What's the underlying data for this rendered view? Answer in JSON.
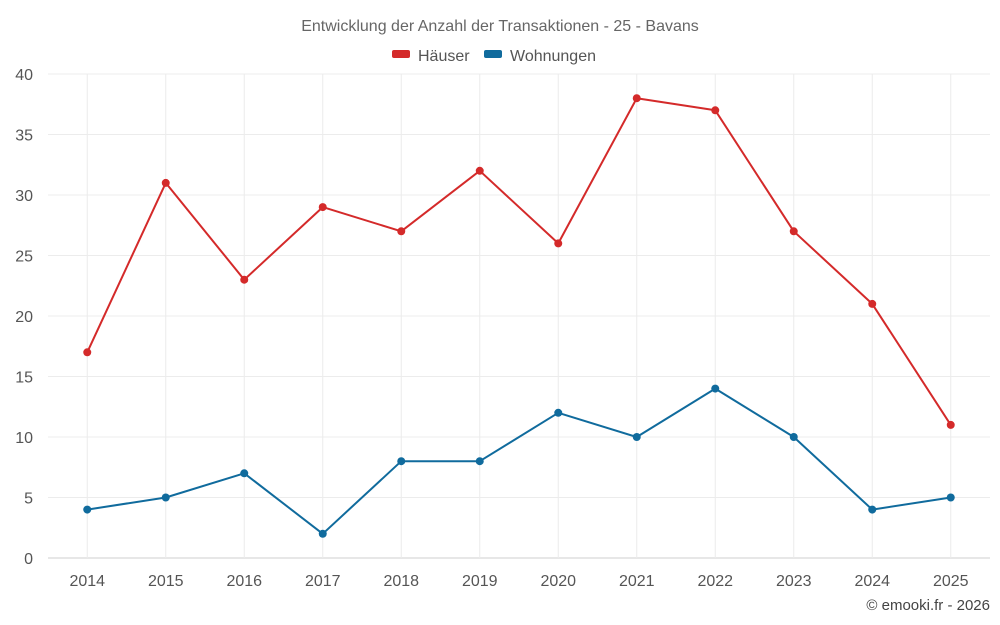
{
  "chart_data": {
    "type": "line",
    "title": "Entwicklung der Anzahl der Transaktionen - 25 - Bavans",
    "categories": [
      "2014",
      "2015",
      "2016",
      "2017",
      "2018",
      "2019",
      "2020",
      "2021",
      "2022",
      "2023",
      "2024",
      "2025"
    ],
    "series": [
      {
        "name": "Häuser",
        "color": "#d42a2a",
        "values": [
          17,
          31,
          23,
          29,
          27,
          32,
          26,
          38,
          37,
          27,
          21,
          11
        ]
      },
      {
        "name": "Wohnungen",
        "color": "#106b9d",
        "values": [
          4,
          5,
          7,
          2,
          8,
          8,
          12,
          10,
          14,
          10,
          4,
          5
        ]
      }
    ],
    "ylim": [
      0,
      40
    ],
    "yticks": [
      0,
      5,
      10,
      15,
      20,
      25,
      30,
      35,
      40
    ],
    "grid": true,
    "legend": "top-center",
    "xlabel": "",
    "ylabel": ""
  },
  "credit": "© emooki.fr - 2026"
}
